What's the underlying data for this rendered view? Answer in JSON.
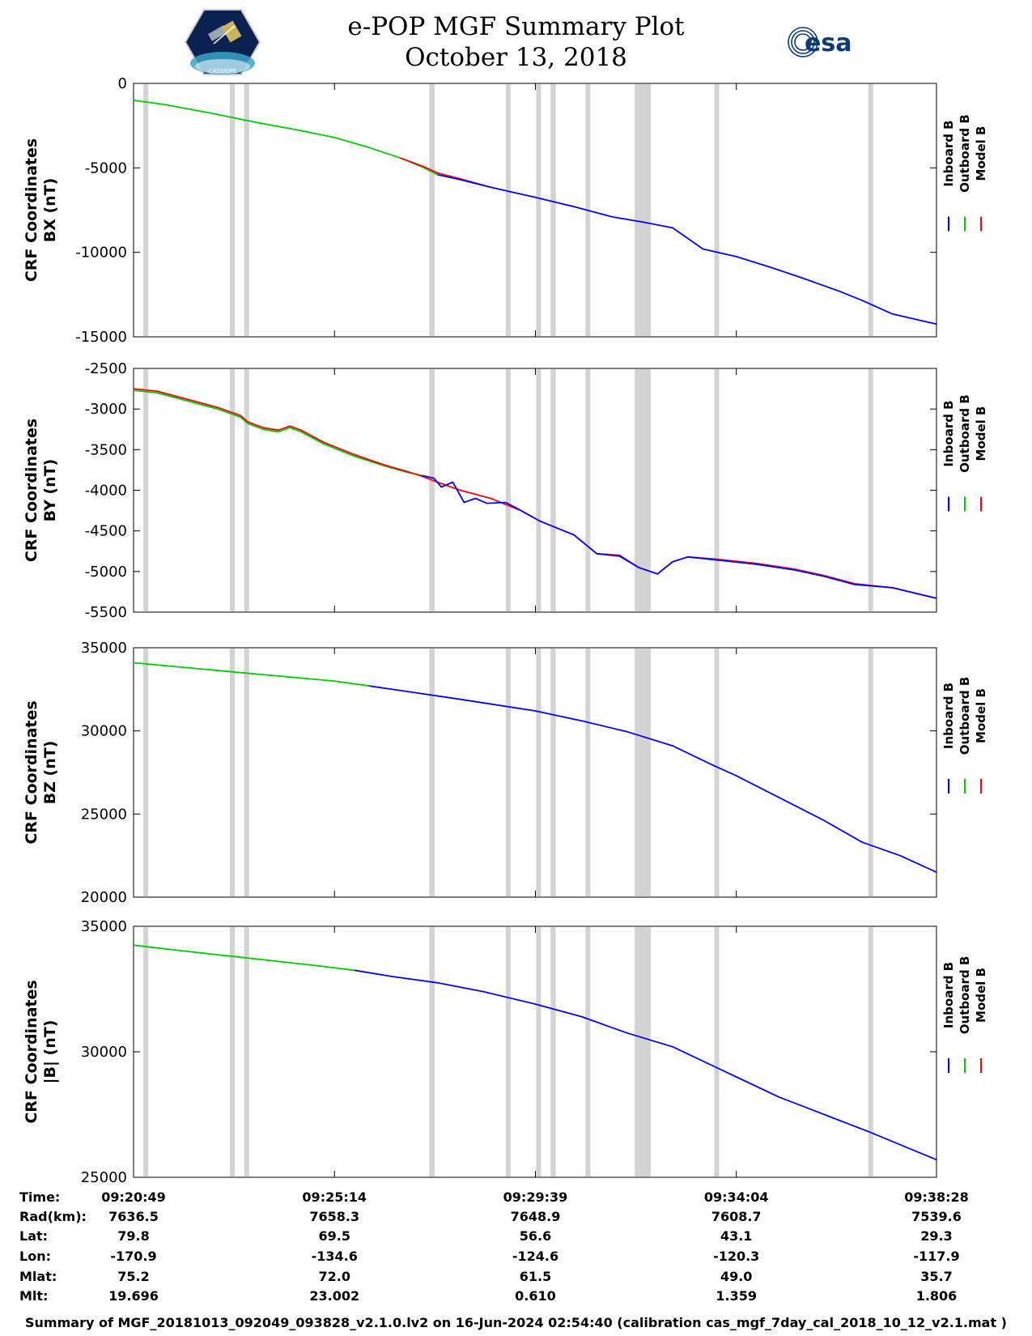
{
  "header": {
    "title_line1": "e-POP MGF Summary Plot",
    "title_line2": "October 13, 2018",
    "left_logo_icon": "cassiope-satellite-logo",
    "left_logo_text": "CASSIOPE",
    "right_logo_icon": "esa-logo",
    "right_logo_text": "esa"
  },
  "colors": {
    "inboard": "#0000ff",
    "outboard": "#00cc00",
    "model": "#ff0000",
    "gap_shading": "#d3d3d3"
  },
  "legend": [
    "Inboard B",
    "Outboard B",
    "Model B"
  ],
  "gap_times": [
    [
      "09:21:02",
      "09:21:08"
    ],
    [
      "09:22:56",
      "09:23:02"
    ],
    [
      "09:23:15",
      "09:23:21"
    ],
    [
      "09:27:19",
      "09:27:26"
    ],
    [
      "09:29:00",
      "09:29:06"
    ],
    [
      "09:29:40",
      "09:29:46"
    ],
    [
      "09:29:59",
      "09:30:06"
    ],
    [
      "09:30:45",
      "09:30:51"
    ],
    [
      "09:31:50",
      "09:32:11"
    ],
    [
      "09:33:35",
      "09:33:41"
    ],
    [
      "09:36:58",
      "09:37:04"
    ]
  ],
  "chart_data": [
    {
      "type": "line",
      "ylabel_line1": "CRF Coordinates",
      "ylabel_line2": "BX (nT)",
      "ylim": [
        -15000,
        0
      ],
      "yticks": [
        "0",
        "-5000",
        "-10000",
        "-15000"
      ],
      "ytick_values": [
        0,
        -5000,
        -10000,
        -15000
      ],
      "series": [
        {
          "name": "Outboard B",
          "color": "#00cc00",
          "x": [
            "09:20:49",
            "09:21:30",
            "09:22:30",
            "09:23:30",
            "09:24:30",
            "09:25:14",
            "09:26:00",
            "09:26:40",
            "09:27:10",
            "09:27:30"
          ],
          "y": [
            -1000,
            -1250,
            -1750,
            -2300,
            -2800,
            -3200,
            -3800,
            -4400,
            -4950,
            -5400
          ]
        },
        {
          "name": "Model B",
          "color": "#ff0000",
          "x": [
            "09:26:40",
            "09:27:10",
            "09:27:30",
            "09:28:00",
            "09:28:40"
          ],
          "y": [
            -4400,
            -4900,
            -5300,
            -5650,
            -6150
          ]
        },
        {
          "name": "Inboard B",
          "color": "#0000ff",
          "x": [
            "09:27:30",
            "09:28:00",
            "09:28:40",
            "09:29:39",
            "09:30:30",
            "09:31:20",
            "09:32:00",
            "09:32:40",
            "09:33:20",
            "09:34:04",
            "09:34:50",
            "09:35:30",
            "09:36:20",
            "09:36:50",
            "09:37:30",
            "09:38:28"
          ],
          "y": [
            -5400,
            -5700,
            -6150,
            -6750,
            -7300,
            -7900,
            -8200,
            -8550,
            -9800,
            -10250,
            -10900,
            -11500,
            -12300,
            -12850,
            -13650,
            -14250
          ]
        }
      ]
    },
    {
      "type": "line",
      "ylabel_line1": "CRF Coordinates",
      "ylabel_line2": "BY (nT)",
      "ylim": [
        -5500,
        -2500
      ],
      "yticks": [
        "-2500",
        "-3000",
        "-3500",
        "-4000",
        "-4500",
        "-5000",
        "-5500"
      ],
      "ytick_values": [
        -2500,
        -3000,
        -3500,
        -4000,
        -4500,
        -5000,
        -5500
      ],
      "series": [
        {
          "name": "Outboard B",
          "color": "#00cc00",
          "x": [
            "09:20:49",
            "09:21:20",
            "09:22:00",
            "09:22:40",
            "09:23:10",
            "09:23:20",
            "09:23:40",
            "09:24:00",
            "09:24:15",
            "09:24:30",
            "09:25:00",
            "09:25:40",
            "09:26:20",
            "09:26:50",
            "09:27:10"
          ],
          "y": [
            -2770,
            -2800,
            -2900,
            -3000,
            -3100,
            -3180,
            -3250,
            -3280,
            -3230,
            -3280,
            -3430,
            -3580,
            -3700,
            -3780,
            -3820
          ]
        },
        {
          "name": "Model B",
          "color": "#ff0000",
          "x": [
            "09:20:49",
            "09:21:20",
            "09:22:00",
            "09:22:40",
            "09:23:10",
            "09:23:20",
            "09:23:40",
            "09:24:00",
            "09:24:15",
            "09:24:30",
            "09:25:00",
            "09:25:40",
            "09:26:20",
            "09:26:50",
            "09:27:10",
            "09:27:30",
            "09:28:00",
            "09:28:40",
            "09:29:20",
            "09:29:45",
            "09:30:30",
            "09:31:00",
            "09:31:30",
            "09:31:55",
            "09:32:20",
            "09:32:40",
            "09:33:00",
            "09:33:40",
            "09:34:30",
            "09:35:20",
            "09:36:00",
            "09:36:40",
            "09:37:30",
            "09:38:28"
          ],
          "y": [
            -2750,
            -2780,
            -2880,
            -2980,
            -3080,
            -3160,
            -3230,
            -3260,
            -3210,
            -3260,
            -3410,
            -3560,
            -3690,
            -3770,
            -3830,
            -3900,
            -4000,
            -4100,
            -4250,
            -4380,
            -4550,
            -4780,
            -4800,
            -4950,
            -5030,
            -4880,
            -4820,
            -4850,
            -4900,
            -4970,
            -5050,
            -5150,
            -5200,
            -5330
          ]
        },
        {
          "name": "Inboard B",
          "color": "#0000ff",
          "x": [
            "09:27:10",
            "09:27:25",
            "09:27:35",
            "09:27:50",
            "09:28:05",
            "09:28:20",
            "09:28:35",
            "09:29:00",
            "09:29:20",
            "09:29:45",
            "09:30:30",
            "09:31:00",
            "09:31:30",
            "09:31:55",
            "09:32:20",
            "09:32:40",
            "09:33:00",
            "09:33:40",
            "09:34:30",
            "09:35:20",
            "09:36:00",
            "09:36:40",
            "09:37:30",
            "09:38:28"
          ],
          "y": [
            -3820,
            -3850,
            -3960,
            -3900,
            -4150,
            -4100,
            -4160,
            -4150,
            -4250,
            -4380,
            -4550,
            -4780,
            -4810,
            -4950,
            -5030,
            -4880,
            -4820,
            -4860,
            -4910,
            -4980,
            -5060,
            -5160,
            -5200,
            -5330
          ]
        }
      ]
    },
    {
      "type": "line",
      "ylabel_line1": "CRF Coordinates",
      "ylabel_line2": "BZ (nT)",
      "ylim": [
        20000,
        35000
      ],
      "yticks": [
        "35000",
        "30000",
        "25000",
        "20000"
      ],
      "ytick_values": [
        35000,
        30000,
        25000,
        20000
      ],
      "series": [
        {
          "name": "Outboard B",
          "color": "#00cc00",
          "x": [
            "09:20:49",
            "09:22:00",
            "09:23:00",
            "09:24:00",
            "09:25:14",
            "09:26:00"
          ],
          "y": [
            34100,
            33800,
            33550,
            33300,
            33000,
            32700
          ]
        },
        {
          "name": "Inboard B",
          "color": "#0000ff",
          "x": [
            "09:26:00",
            "09:27:00",
            "09:28:00",
            "09:29:39",
            "09:30:40",
            "09:31:40",
            "09:32:40",
            "09:33:30",
            "09:34:04",
            "09:35:00",
            "09:36:00",
            "09:36:50",
            "09:37:40",
            "09:38:28"
          ],
          "y": [
            32700,
            32300,
            31900,
            31200,
            30600,
            29950,
            29100,
            28000,
            27300,
            26000,
            24600,
            23300,
            22500,
            21500
          ]
        }
      ]
    },
    {
      "type": "line",
      "ylabel_line1": "CRF Coordinates",
      "ylabel_line2": "|B| (nT)",
      "ylim": [
        25000,
        35000
      ],
      "yticks": [
        "35000",
        "30000",
        "25000"
      ],
      "ytick_values": [
        35000,
        30000,
        25000
      ],
      "series": [
        {
          "name": "Outboard B",
          "color": "#00cc00",
          "x": [
            "09:20:49",
            "09:22:00",
            "09:23:00",
            "09:24:00",
            "09:25:00",
            "09:25:40"
          ],
          "y": [
            34250,
            34000,
            33800,
            33600,
            33400,
            33250
          ]
        },
        {
          "name": "Inboard B",
          "color": "#0000ff",
          "x": [
            "09:25:40",
            "09:26:30",
            "09:27:30",
            "09:28:30",
            "09:29:39",
            "09:30:40",
            "09:31:40",
            "09:32:40",
            "09:34:04",
            "09:35:00",
            "09:36:00",
            "09:37:00",
            "09:38:28"
          ],
          "y": [
            33250,
            33000,
            32750,
            32400,
            31900,
            31400,
            30750,
            30200,
            29000,
            28200,
            27500,
            26800,
            25700
          ]
        }
      ]
    }
  ],
  "xticks": [
    "09:20:49",
    "09:25:14",
    "09:29:39",
    "09:34:04",
    "09:38:28"
  ],
  "orbit_table": {
    "row_labels": [
      "Time:",
      "Rad(km):",
      "Lat:",
      "Lon:",
      "Mlat:",
      "Mlt:"
    ],
    "columns": [
      [
        "09:20:49",
        "7636.5",
        "79.8",
        "-170.9",
        "75.2",
        "19.696"
      ],
      [
        "09:25:14",
        "7658.3",
        "69.5",
        "-134.6",
        "72.0",
        "23.002"
      ],
      [
        "09:29:39",
        "7648.9",
        "56.6",
        "-124.6",
        "61.5",
        "0.610"
      ],
      [
        "09:34:04",
        "7608.7",
        "43.1",
        "-120.3",
        "49.0",
        "1.359"
      ],
      [
        "09:38:28",
        "7539.6",
        "29.3",
        "-117.9",
        "35.7",
        "1.806"
      ]
    ]
  },
  "footer": "Summary of MGF_20181013_092049_093828_v2.1.0.lv2 on 16-Jun-2024 02:54:40 (calibration cas_mgf_7day_cal_2018_10_12_v2.1.mat )"
}
